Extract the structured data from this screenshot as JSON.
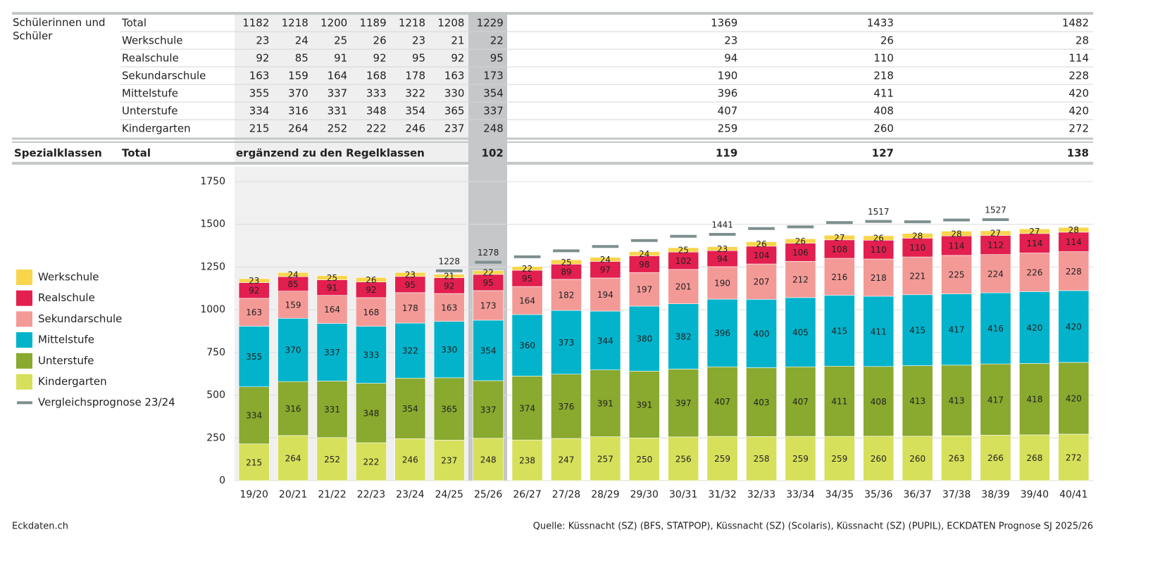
{
  "table": {
    "group_label": "Schülerinnen und Schüler",
    "rows": [
      {
        "label": "Total",
        "values": [
          1182,
          1218,
          1200,
          1189,
          1218,
          1208,
          1229,
          1369,
          1433,
          1482
        ]
      },
      {
        "label": "Werkschule",
        "values": [
          23,
          24,
          25,
          26,
          23,
          21,
          22,
          23,
          26,
          28
        ]
      },
      {
        "label": "Realschule",
        "values": [
          92,
          85,
          91,
          92,
          95,
          92,
          95,
          94,
          110,
          114
        ]
      },
      {
        "label": "Sekundarschule",
        "values": [
          163,
          159,
          164,
          168,
          178,
          163,
          173,
          190,
          218,
          228
        ]
      },
      {
        "label": "Mittelstufe",
        "values": [
          355,
          370,
          337,
          333,
          322,
          330,
          354,
          396,
          411,
          420
        ]
      },
      {
        "label": "Unterstufe",
        "values": [
          334,
          316,
          331,
          348,
          354,
          365,
          337,
          407,
          408,
          420
        ]
      },
      {
        "label": "Kindergarten",
        "values": [
          215,
          264,
          252,
          222,
          246,
          237,
          248,
          259,
          260,
          272
        ]
      }
    ],
    "special": {
      "group_label": "Spezialklassen",
      "label": "Total",
      "note": "ergänzend zu den Regelklassen",
      "values": [
        102,
        119,
        127,
        138
      ]
    }
  },
  "chart_data": {
    "type": "stacked_bar",
    "categories": [
      "19/20",
      "20/21",
      "21/22",
      "22/23",
      "23/24",
      "24/25",
      "25/26",
      "26/27",
      "27/28",
      "28/29",
      "29/30",
      "30/31",
      "31/32",
      "32/33",
      "33/34",
      "34/35",
      "35/36",
      "36/37",
      "37/38",
      "38/39",
      "39/40",
      "40/41"
    ],
    "series": [
      {
        "name": "Kindergarten",
        "color": "#d6e05a",
        "values": [
          215,
          264,
          252,
          222,
          246,
          237,
          248,
          238,
          247,
          257,
          250,
          256,
          259,
          258,
          259,
          259,
          260,
          260,
          263,
          266,
          268,
          272
        ]
      },
      {
        "name": "Unterstufe",
        "color": "#89a92f",
        "values": [
          334,
          316,
          331,
          348,
          354,
          365,
          337,
          374,
          376,
          391,
          391,
          397,
          407,
          403,
          407,
          411,
          408,
          413,
          413,
          417,
          418,
          420
        ]
      },
      {
        "name": "Mittelstufe",
        "color": "#02b3cb",
        "values": [
          355,
          370,
          337,
          333,
          322,
          330,
          354,
          360,
          373,
          344,
          380,
          382,
          396,
          400,
          405,
          415,
          411,
          415,
          417,
          416,
          420,
          420
        ]
      },
      {
        "name": "Sekundarschule",
        "color": "#f39a97",
        "values": [
          163,
          159,
          164,
          168,
          178,
          163,
          173,
          164,
          182,
          194,
          197,
          201,
          190,
          207,
          212,
          216,
          218,
          221,
          225,
          224,
          226,
          228
        ]
      },
      {
        "name": "Realschule",
        "color": "#e21f4f",
        "values": [
          92,
          85,
          91,
          92,
          95,
          92,
          95,
          95,
          89,
          97,
          98,
          102,
          94,
          104,
          106,
          108,
          110,
          110,
          114,
          112,
          114,
          114
        ]
      },
      {
        "name": "Werkschule",
        "color": "#f8d54b",
        "values": [
          23,
          24,
          25,
          26,
          23,
          21,
          22,
          22,
          25,
          24,
          24,
          25,
          23,
          26,
          26,
          27,
          26,
          28,
          28,
          27,
          27,
          28
        ]
      },
      {
        "name": "Vergleichsprognose 23/24",
        "type": "line",
        "color": "#7d8f8e",
        "values": [
          null,
          null,
          null,
          null,
          null,
          1228,
          1278,
          1310,
          1345,
          1370,
          1405,
          1430,
          1441,
          1475,
          1485,
          1510,
          1517,
          1515,
          1525,
          1527,
          null,
          null
        ],
        "value_labels": [
          null,
          null,
          null,
          null,
          null,
          "1228",
          "1278",
          null,
          null,
          null,
          null,
          null,
          "1441",
          null,
          null,
          null,
          "1517",
          null,
          null,
          "1527",
          null,
          null
        ]
      }
    ],
    "ylim": [
      0,
      1750
    ],
    "yticks": [
      0,
      250,
      500,
      750,
      1000,
      1250,
      1500,
      1750
    ],
    "grid": true
  },
  "footer": {
    "left": "Eckdaten.ch",
    "source": "Quelle: Küssnacht (SZ) (BFS, STATPOP), Küssnacht (SZ) (Scolaris), Küssnacht (SZ) (PUPIL), ECKDATEN Prognose SJ 2025/26"
  }
}
